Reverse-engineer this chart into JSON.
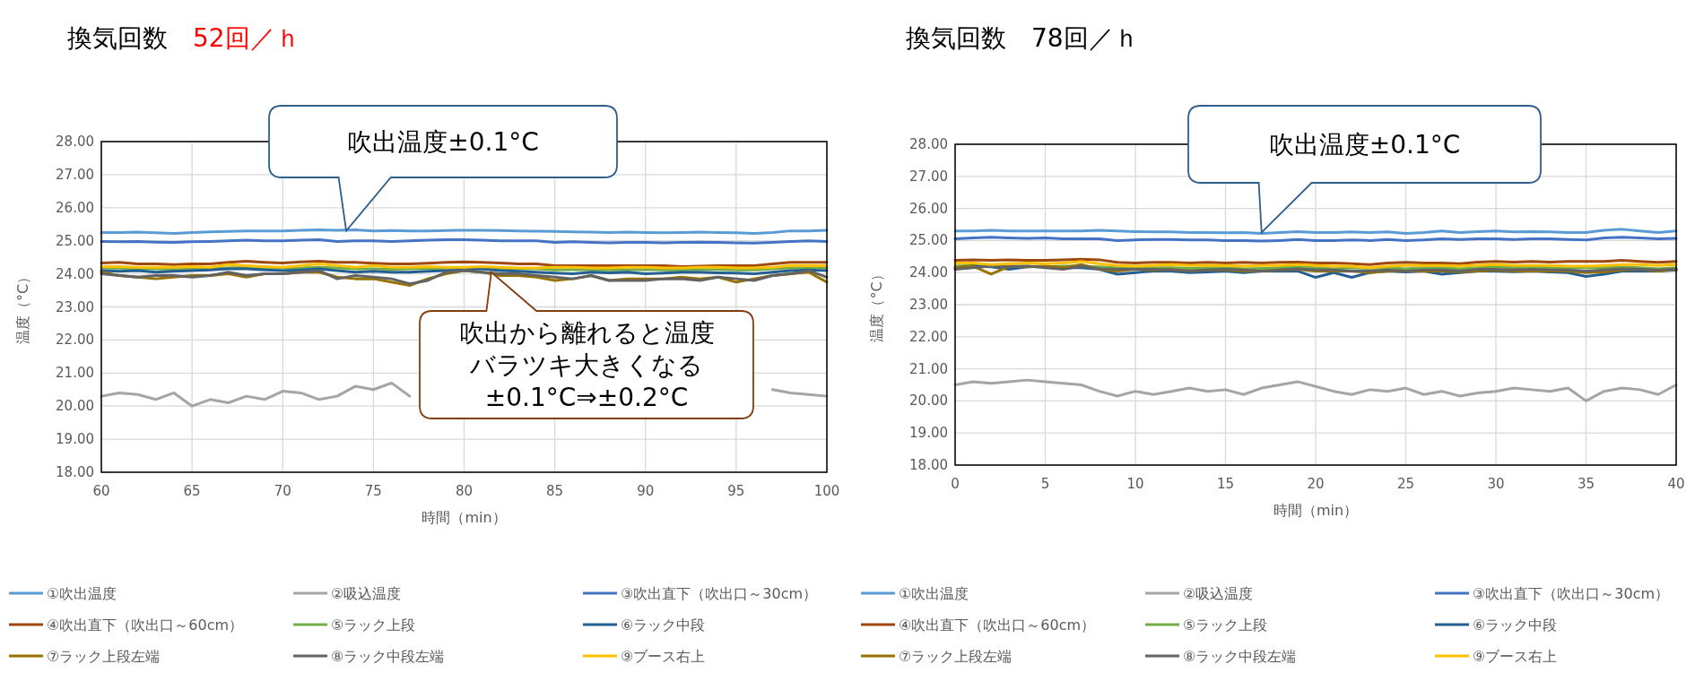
{
  "chart_data": [
    {
      "type": "line",
      "title": "換気回数",
      "subtitle": "52回／ｈ",
      "xlabel": "時間（min）",
      "ylabel": "温度（°C）",
      "legend": "bottom",
      "grid": true,
      "marker": "none",
      "line_style": "solid",
      "xlim": [
        60,
        100
      ],
      "xticks": [
        60,
        65,
        70,
        75,
        80,
        85,
        90,
        95,
        100
      ],
      "ylim": [
        18,
        28
      ],
      "yticks": [
        {
          "value": 18,
          "label": "18.00"
        },
        {
          "value": 19,
          "label": "19.00"
        },
        {
          "value": 20,
          "label": "20.00"
        },
        {
          "value": 21,
          "label": "21.00"
        },
        {
          "value": 22,
          "label": "22.00"
        },
        {
          "value": 23,
          "label": "23.00"
        },
        {
          "value": 24,
          "label": "24.00"
        },
        {
          "value": 25,
          "label": "25.00"
        },
        {
          "value": 26,
          "label": "26.00"
        },
        {
          "value": 27,
          "label": "27.00"
        },
        {
          "value": 28,
          "label": "28.00"
        }
      ],
      "x": [
        60,
        61,
        62,
        63,
        64,
        65,
        66,
        67,
        68,
        69,
        70,
        71,
        72,
        73,
        74,
        75,
        76,
        77,
        78,
        79,
        80,
        81,
        82,
        83,
        84,
        85,
        86,
        87,
        88,
        89,
        90,
        91,
        92,
        93,
        94,
        95,
        96,
        97,
        98,
        99,
        100
      ],
      "annotations": [
        {
          "text": "吹出温度±0.1°C",
          "x": 73.5,
          "y": 25.3
        },
        {
          "text": "吹出から離れると温度バラツキ大きくなる±0.1°C⇒±0.2°C",
          "x": 81.5,
          "y": 24.05
        }
      ],
      "series": [
        {
          "name": "①吹出温度",
          "color": "#5b9bd5",
          "values": [
            25.25,
            25.25,
            25.26,
            25.24,
            25.22,
            25.25,
            25.27,
            25.28,
            25.3,
            25.3,
            25.3,
            25.32,
            25.33,
            25.32,
            25.33,
            25.3,
            25.31,
            25.3,
            25.3,
            25.31,
            25.32,
            25.32,
            25.31,
            25.3,
            25.29,
            25.28,
            25.27,
            25.26,
            25.25,
            25.26,
            25.25,
            25.24,
            25.25,
            25.26,
            25.25,
            25.24,
            25.22,
            25.25,
            25.3,
            25.3,
            25.32
          ]
        },
        {
          "name": "②吸込温度",
          "color": "#a5a5a5",
          "values": [
            20.3,
            20.4,
            20.35,
            20.2,
            20.4,
            20.0,
            20.2,
            20.1,
            20.3,
            20.2,
            20.45,
            20.4,
            20.2,
            20.3,
            20.6,
            20.5,
            20.7,
            20.3,
            null,
            null,
            null,
            null,
            null,
            null,
            null,
            null,
            null,
            null,
            null,
            null,
            null,
            null,
            null,
            null,
            null,
            null,
            null,
            20.5,
            20.4,
            20.35,
            20.3
          ]
        },
        {
          "name": "③吹出直下（吹出口～30cm）",
          "color": "#4472c4",
          "values": [
            24.98,
            24.97,
            24.98,
            24.96,
            24.95,
            24.97,
            24.98,
            25.0,
            25.02,
            25.0,
            25.0,
            25.02,
            25.03,
            24.98,
            25.0,
            25.0,
            24.98,
            25.0,
            25.02,
            25.03,
            25.03,
            25.02,
            25.0,
            25.0,
            25.0,
            24.95,
            24.97,
            24.95,
            24.94,
            24.95,
            24.95,
            24.94,
            24.95,
            24.96,
            24.95,
            24.94,
            24.93,
            24.95,
            24.98,
            25.0,
            24.98
          ]
        },
        {
          "name": "④吹出直下（吹出口～60cm）",
          "color": "#9e480e",
          "values": [
            24.33,
            24.35,
            24.3,
            24.3,
            24.28,
            24.3,
            24.3,
            24.35,
            24.38,
            24.35,
            24.33,
            24.36,
            24.38,
            24.35,
            24.35,
            24.32,
            24.3,
            24.3,
            24.32,
            24.35,
            24.36,
            24.35,
            24.33,
            24.3,
            24.3,
            24.25,
            24.25,
            24.25,
            24.25,
            24.25,
            24.25,
            24.25,
            24.22,
            24.23,
            24.25,
            24.25,
            24.25,
            24.3,
            24.35,
            24.35,
            24.35
          ]
        },
        {
          "name": "⑤ラック上段",
          "color": "#70ad47",
          "values": [
            24.18,
            24.17,
            24.15,
            24.15,
            24.14,
            24.16,
            24.17,
            24.18,
            24.2,
            24.18,
            24.17,
            24.18,
            24.2,
            24.18,
            24.15,
            24.15,
            24.14,
            24.15,
            24.16,
            24.17,
            24.18,
            24.18,
            24.16,
            24.15,
            24.15,
            24.12,
            24.13,
            24.12,
            24.12,
            24.12,
            24.13,
            24.12,
            24.12,
            24.13,
            24.13,
            24.12,
            24.12,
            24.15,
            24.18,
            24.2,
            24.18
          ]
        },
        {
          "name": "⑥ラック中段",
          "color": "#255e91",
          "values": [
            24.1,
            24.08,
            24.1,
            24.05,
            24.08,
            24.1,
            24.12,
            24.15,
            24.15,
            24.12,
            24.1,
            24.12,
            24.15,
            24.1,
            24.05,
            24.08,
            24.05,
            24.05,
            24.08,
            24.1,
            24.12,
            24.15,
            24.1,
            24.08,
            24.05,
            24.02,
            24.0,
            24.05,
            24.03,
            24.05,
            24.0,
            24.02,
            24.05,
            24.05,
            24.03,
            24.02,
            24.0,
            24.05,
            24.1,
            24.12,
            24.1
          ]
        },
        {
          "name": "⑦ラック上段左端",
          "color": "#997300",
          "values": [
            24.05,
            23.95,
            23.9,
            23.85,
            23.9,
            23.95,
            23.95,
            24.0,
            23.9,
            24.0,
            24.0,
            24.05,
            24.05,
            23.9,
            23.85,
            23.85,
            23.75,
            23.65,
            23.85,
            24.0,
            24.1,
            24.05,
            23.95,
            23.95,
            23.9,
            23.8,
            23.85,
            23.95,
            23.8,
            23.85,
            23.85,
            23.85,
            23.9,
            23.85,
            23.9,
            23.75,
            23.85,
            23.95,
            24.0,
            24.05,
            23.75
          ]
        },
        {
          "name": "⑧ラック中段左端",
          "color": "#636363",
          "values": [
            24.0,
            23.95,
            23.9,
            23.95,
            23.95,
            23.9,
            23.95,
            24.05,
            23.95,
            24.0,
            24.0,
            24.05,
            24.1,
            23.85,
            23.95,
            23.9,
            23.85,
            23.7,
            23.8,
            24.05,
            24.1,
            24.05,
            24.0,
            24.0,
            23.95,
            23.9,
            23.85,
            23.95,
            23.8,
            23.8,
            23.8,
            23.85,
            23.85,
            23.8,
            23.9,
            23.85,
            23.8,
            23.95,
            24.0,
            24.1,
            23.9
          ]
        },
        {
          "name": "⑨ブース右上",
          "color": "#ffc000",
          "values": [
            24.22,
            24.22,
            24.2,
            24.2,
            24.2,
            24.22,
            24.2,
            24.28,
            24.25,
            24.22,
            24.2,
            24.25,
            24.3,
            24.25,
            24.2,
            24.25,
            24.2,
            24.2,
            24.22,
            24.2,
            24.2,
            24.22,
            24.2,
            24.18,
            24.18,
            24.2,
            24.2,
            24.18,
            24.18,
            24.2,
            24.2,
            24.18,
            24.18,
            24.2,
            24.2,
            24.18,
            24.18,
            24.2,
            24.25,
            24.25,
            24.25
          ]
        }
      ]
    },
    {
      "type": "line",
      "title": "換気回数",
      "subtitle": "78回／ｈ",
      "xlabel": "時間（min）",
      "ylabel": "温度（°C）",
      "legend": "bottom",
      "grid": true,
      "marker": "none",
      "line_style": "solid",
      "xlim": [
        0,
        40
      ],
      "xticks": [
        0,
        5,
        10,
        15,
        20,
        25,
        30,
        35,
        40
      ],
      "ylim": [
        18,
        28
      ],
      "yticks": [
        {
          "value": 18,
          "label": "18.00"
        },
        {
          "value": 19,
          "label": "19.00"
        },
        {
          "value": 20,
          "label": "20.00"
        },
        {
          "value": 21,
          "label": "21.00"
        },
        {
          "value": 22,
          "label": "22.00"
        },
        {
          "value": 23,
          "label": "23.00"
        },
        {
          "value": 24,
          "label": "24.00"
        },
        {
          "value": 25,
          "label": "25.00"
        },
        {
          "value": 26,
          "label": "26.00"
        },
        {
          "value": 27,
          "label": "27.00"
        },
        {
          "value": 28,
          "label": "28.00"
        }
      ],
      "x": [
        0,
        1,
        2,
        3,
        4,
        5,
        6,
        7,
        8,
        9,
        10,
        11,
        12,
        13,
        14,
        15,
        16,
        17,
        18,
        19,
        20,
        21,
        22,
        23,
        24,
        25,
        26,
        27,
        28,
        29,
        30,
        31,
        32,
        33,
        34,
        35,
        36,
        37,
        38,
        39,
        40
      ],
      "annotations": [
        {
          "text": "吹出温度±0.1°C",
          "x": 17,
          "y": 25.25
        }
      ],
      "series": [
        {
          "name": "①吹出温度",
          "color": "#5b9bd5",
          "values": [
            25.3,
            25.3,
            25.32,
            25.3,
            25.3,
            25.3,
            25.3,
            25.3,
            25.32,
            25.3,
            25.28,
            25.27,
            25.27,
            25.25,
            25.25,
            25.24,
            25.25,
            25.22,
            25.25,
            25.28,
            25.25,
            25.25,
            25.27,
            25.25,
            25.27,
            25.22,
            25.25,
            25.3,
            25.25,
            25.28,
            25.3,
            25.27,
            25.28,
            25.27,
            25.25,
            25.25,
            25.32,
            25.35,
            25.3,
            25.25,
            25.3
          ]
        },
        {
          "name": "②吸込温度",
          "color": "#a5a5a5",
          "values": [
            20.5,
            20.6,
            20.55,
            20.6,
            20.65,
            20.6,
            20.55,
            20.5,
            20.3,
            20.15,
            20.3,
            20.2,
            20.3,
            20.4,
            20.3,
            20.35,
            20.2,
            20.4,
            20.5,
            20.6,
            20.45,
            20.3,
            20.2,
            20.35,
            20.3,
            20.4,
            20.2,
            20.3,
            20.15,
            20.25,
            20.3,
            20.4,
            20.35,
            20.3,
            20.4,
            20.0,
            20.3,
            20.4,
            20.35,
            20.2,
            20.5
          ]
        },
        {
          "name": "③吹出直下（吹出口～30cm）",
          "color": "#4472c4",
          "values": [
            25.05,
            25.08,
            25.1,
            25.08,
            25.07,
            25.08,
            25.05,
            25.05,
            25.05,
            25.0,
            25.02,
            25.03,
            25.03,
            25.02,
            25.02,
            25.0,
            25.0,
            24.98,
            25.0,
            25.03,
            25.0,
            25.0,
            25.02,
            25.0,
            25.03,
            25.0,
            25.02,
            25.05,
            25.03,
            25.05,
            25.05,
            25.03,
            25.05,
            25.05,
            25.03,
            25.02,
            25.08,
            25.1,
            25.08,
            25.05,
            25.07
          ]
        },
        {
          "name": "④吹出直下（吹出口～60cm）",
          "color": "#9e480e",
          "values": [
            24.38,
            24.4,
            24.38,
            24.4,
            24.38,
            24.38,
            24.4,
            24.42,
            24.4,
            24.32,
            24.3,
            24.32,
            24.32,
            24.3,
            24.32,
            24.3,
            24.32,
            24.3,
            24.32,
            24.33,
            24.3,
            24.3,
            24.28,
            24.25,
            24.3,
            24.32,
            24.3,
            24.3,
            24.28,
            24.33,
            24.35,
            24.33,
            24.35,
            24.33,
            24.35,
            24.35,
            24.35,
            24.38,
            24.35,
            24.32,
            24.35
          ]
        },
        {
          "name": "⑤ラック上段",
          "color": "#70ad47",
          "values": [
            24.2,
            24.22,
            24.2,
            24.2,
            24.2,
            24.18,
            24.2,
            24.2,
            24.18,
            24.15,
            24.15,
            24.15,
            24.15,
            24.13,
            24.15,
            24.15,
            24.12,
            24.13,
            24.15,
            24.18,
            24.15,
            24.12,
            24.15,
            24.13,
            24.15,
            24.12,
            24.15,
            24.15,
            24.12,
            24.15,
            24.18,
            24.15,
            24.17,
            24.15,
            24.15,
            24.15,
            24.15,
            24.17,
            24.15,
            24.12,
            24.15
          ]
        },
        {
          "name": "⑥ラック中段",
          "color": "#255e91",
          "values": [
            24.15,
            24.2,
            24.18,
            24.1,
            24.18,
            24.2,
            24.15,
            24.15,
            24.1,
            23.95,
            24.0,
            24.05,
            24.05,
            24.0,
            24.02,
            24.05,
            24.0,
            24.05,
            24.05,
            24.05,
            23.85,
            24.0,
            23.85,
            24.0,
            24.05,
            24.02,
            24.05,
            23.95,
            24.0,
            24.05,
            24.05,
            24.03,
            24.05,
            24.02,
            24.0,
            23.88,
            23.95,
            24.05,
            24.05,
            24.05,
            24.08
          ]
        },
        {
          "name": "⑦ラック上段左端",
          "color": "#997300",
          "values": [
            24.15,
            24.2,
            23.95,
            24.2,
            24.18,
            24.2,
            24.15,
            24.25,
            24.1,
            24.05,
            24.1,
            24.08,
            24.1,
            24.05,
            24.08,
            24.08,
            24.05,
            24.05,
            24.08,
            24.1,
            24.05,
            24.05,
            24.05,
            24.0,
            24.05,
            24.05,
            24.05,
            24.05,
            24.03,
            24.05,
            24.08,
            24.05,
            24.05,
            24.05,
            24.05,
            24.0,
            24.02,
            24.08,
            24.1,
            24.05,
            24.1
          ]
        },
        {
          "name": "⑧ラック中段左端",
          "color": "#636363",
          "values": [
            24.1,
            24.15,
            24.2,
            24.18,
            24.2,
            24.15,
            24.1,
            24.2,
            24.12,
            24.1,
            24.1,
            24.1,
            24.08,
            24.05,
            24.08,
            24.1,
            24.08,
            24.05,
            24.08,
            24.12,
            24.08,
            24.08,
            24.05,
            24.05,
            24.08,
            24.05,
            24.08,
            24.08,
            24.05,
            24.1,
            24.1,
            24.08,
            24.1,
            24.08,
            24.08,
            24.05,
            24.08,
            24.12,
            24.1,
            24.08,
            24.1
          ]
        },
        {
          "name": "⑨ブース右上",
          "color": "#ffc000",
          "values": [
            24.3,
            24.3,
            24.25,
            24.28,
            24.3,
            24.28,
            24.3,
            24.35,
            24.28,
            24.22,
            24.2,
            24.22,
            24.25,
            24.22,
            24.22,
            24.22,
            24.2,
            24.22,
            24.22,
            24.25,
            24.22,
            24.2,
            24.2,
            24.15,
            24.2,
            24.22,
            24.22,
            24.22,
            24.2,
            24.23,
            24.25,
            24.22,
            24.22,
            24.22,
            24.2,
            24.2,
            24.22,
            24.25,
            24.25,
            24.22,
            24.25
          ]
        }
      ]
    }
  ]
}
